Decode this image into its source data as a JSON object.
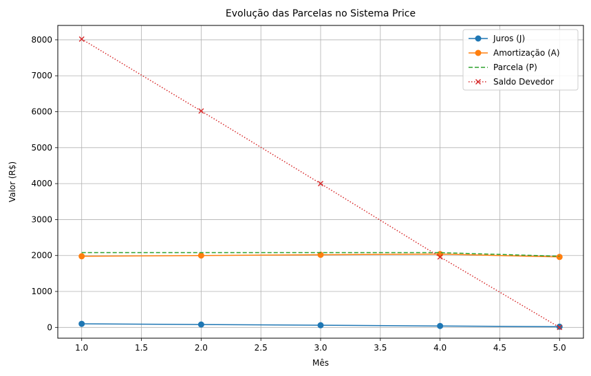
{
  "chart_data": {
    "type": "line",
    "title": "Evolução das Parcelas no Sistema Price",
    "xlabel": "Mês",
    "ylabel": "Valor (R$)",
    "xlim": [
      0.8,
      5.2
    ],
    "ylim": [
      -300,
      8400
    ],
    "xticks": [
      1.0,
      1.5,
      2.0,
      2.5,
      3.0,
      3.5,
      4.0,
      4.5,
      5.0
    ],
    "yticks": [
      0,
      1000,
      2000,
      3000,
      4000,
      5000,
      6000,
      7000,
      8000
    ],
    "xtick_labels": [
      "1.0",
      "1.5",
      "2.0",
      "2.5",
      "3.0",
      "3.5",
      "4.0",
      "4.5",
      "5.0"
    ],
    "ytick_labels": [
      "0",
      "1000",
      "2000",
      "3000",
      "4000",
      "5000",
      "6000",
      "7000",
      "8000"
    ],
    "grid": true,
    "legend_position": "top-right",
    "x": [
      1,
      2,
      3,
      4,
      5
    ],
    "series": [
      {
        "name": "Juros (J)",
        "values": [
          100,
          80,
          60,
          40,
          20
        ],
        "color": "#1f77b4",
        "linestyle": "solid",
        "marker": "circle"
      },
      {
        "name": "Amortização (A)",
        "values": [
          1980,
          2000,
          2020,
          2040,
          1960
        ],
        "color": "#ff7f0e",
        "linestyle": "solid",
        "marker": "circle"
      },
      {
        "name": "Parcela (P)",
        "values": [
          2080,
          2080,
          2080,
          2080,
          1980
        ],
        "color": "#2ca02c",
        "linestyle": "dashed",
        "marker": "none"
      },
      {
        "name": "Saldo Devedor",
        "values": [
          8020,
          6020,
          4000,
          1960,
          0
        ],
        "color": "#d62728",
        "linestyle": "dotted",
        "marker": "x"
      }
    ]
  }
}
